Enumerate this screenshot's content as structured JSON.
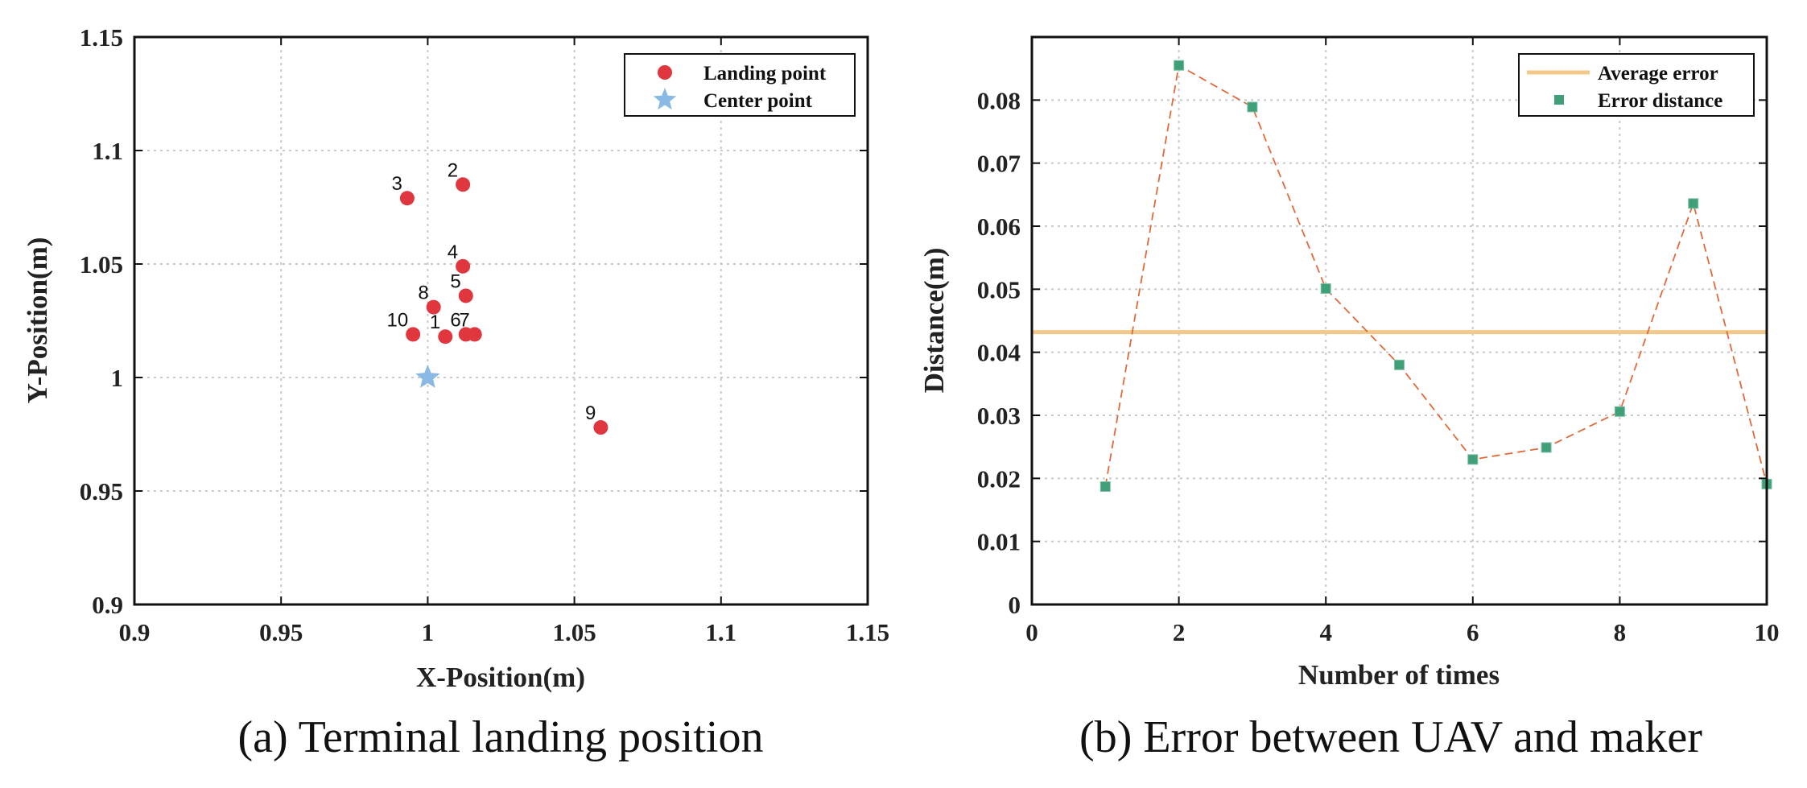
{
  "chart_data": [
    {
      "type": "scatter",
      "xlabel": "X-Position(m)",
      "ylabel": "Y-Position(m)",
      "xlim": [
        0.9,
        1.15
      ],
      "ylim": [
        0.9,
        1.15
      ],
      "xticks": [
        0.9,
        0.95,
        1,
        1.05,
        1.1,
        1.15
      ],
      "yticks": [
        0.9,
        0.95,
        1,
        1.05,
        1.1,
        1.15
      ],
      "xtick_labels": [
        "0.9",
        "0.95",
        "1",
        "1.05",
        "1.1",
        "1.15"
      ],
      "ytick_labels": [
        "0.9",
        "0.95",
        "1",
        "1.05",
        "1.1",
        "1.15"
      ],
      "grid": true,
      "legend_position": "top-right",
      "series": [
        {
          "name": "Landing point",
          "color": "#e0363d",
          "marker": "circle",
          "points": [
            {
              "label": "1",
              "x": 1.006,
              "y": 1.018
            },
            {
              "label": "2",
              "x": 1.012,
              "y": 1.085
            },
            {
              "label": "3",
              "x": 0.993,
              "y": 1.079
            },
            {
              "label": "4",
              "x": 1.012,
              "y": 1.049
            },
            {
              "label": "5",
              "x": 1.013,
              "y": 1.036
            },
            {
              "label": "6",
              "x": 1.013,
              "y": 1.019
            },
            {
              "label": "7",
              "x": 1.016,
              "y": 1.019
            },
            {
              "label": "8",
              "x": 1.002,
              "y": 1.031
            },
            {
              "label": "9",
              "x": 1.059,
              "y": 0.978
            },
            {
              "label": "10",
              "x": 0.995,
              "y": 1.019
            }
          ]
        },
        {
          "name": "Center point",
          "color": "#8ab9e3",
          "marker": "star",
          "points": [
            {
              "x": 1.0,
              "y": 1.0
            }
          ]
        }
      ],
      "caption": "(a) Terminal landing position"
    },
    {
      "type": "line",
      "xlabel": "Number of times",
      "ylabel": "Distance(m)",
      "xlim": [
        0,
        10
      ],
      "ylim": [
        0,
        0.09
      ],
      "xticks": [
        0,
        2,
        4,
        6,
        8,
        10
      ],
      "yticks": [
        0,
        0.01,
        0.02,
        0.03,
        0.04,
        0.05,
        0.06,
        0.07,
        0.08
      ],
      "xtick_labels": [
        "0",
        "2",
        "4",
        "6",
        "8",
        "10"
      ],
      "ytick_labels": [
        "0",
        "0.01",
        "0.02",
        "0.03",
        "0.04",
        "0.05",
        "0.06",
        "0.07",
        "0.08"
      ],
      "grid": true,
      "legend_position": "top-right",
      "series": [
        {
          "name": "Average error",
          "color": "#f3c98b",
          "style": "horizontal-line",
          "value": 0.0432
        },
        {
          "name": "Error distance",
          "color": "#3f9f78",
          "line_color": "#e06a3a",
          "marker": "square",
          "x": [
            1,
            2,
            3,
            4,
            5,
            6,
            7,
            8,
            9,
            10
          ],
          "values": [
            0.0187,
            0.0855,
            0.0789,
            0.0501,
            0.038,
            0.023,
            0.0249,
            0.0306,
            0.0636,
            0.0191
          ]
        }
      ],
      "caption": "(b) Error between UAV and maker"
    }
  ]
}
